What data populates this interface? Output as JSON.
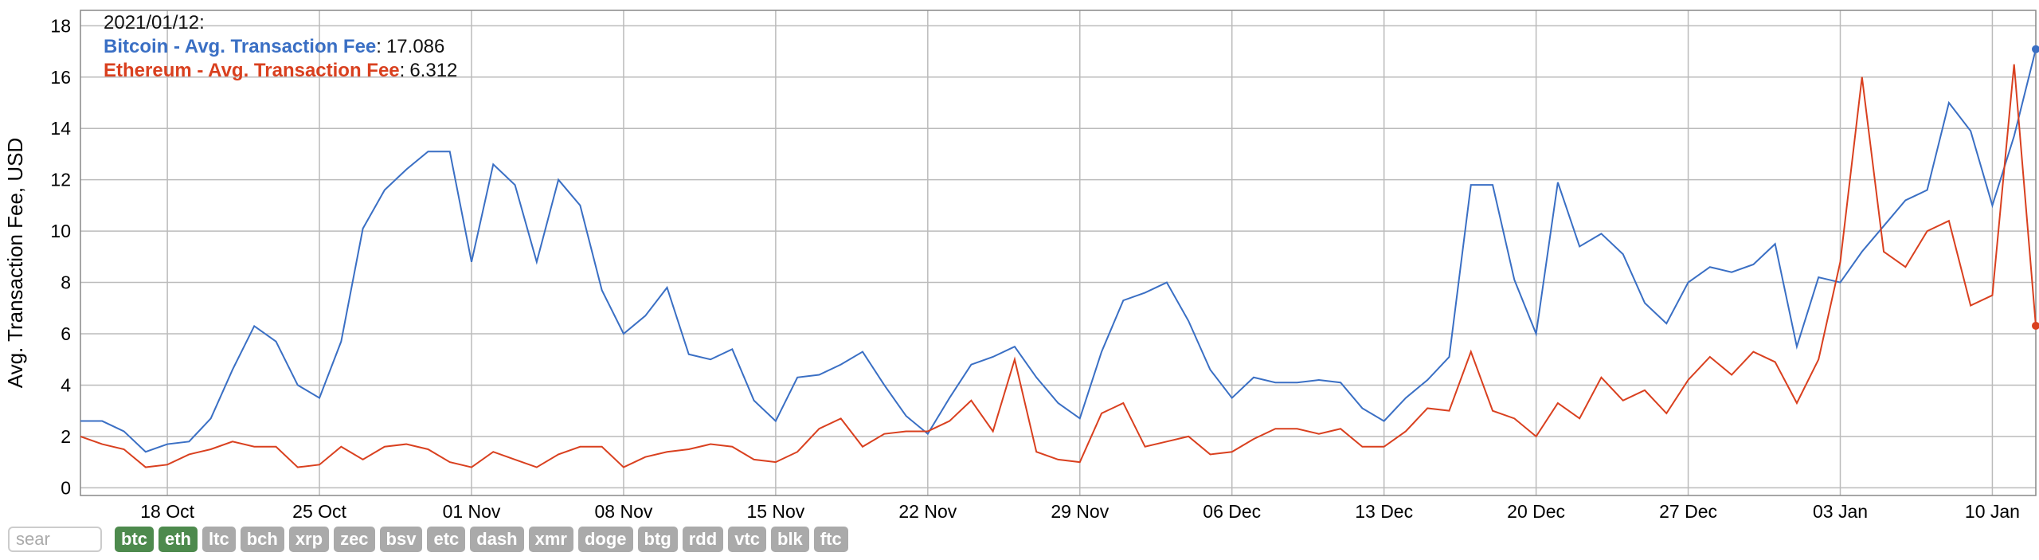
{
  "chart_data": {
    "type": "line",
    "y_label": "Avg. Transaction Fee, USD",
    "categories": [
      null,
      null,
      null,
      null,
      "18 Oct",
      null,
      null,
      null,
      null,
      null,
      null,
      "25 Oct",
      null,
      null,
      null,
      null,
      null,
      null,
      "01 Nov",
      null,
      null,
      null,
      null,
      null,
      null,
      "08 Nov",
      null,
      null,
      null,
      null,
      null,
      null,
      "15 Nov",
      null,
      null,
      null,
      null,
      null,
      null,
      "22 Nov",
      null,
      null,
      null,
      null,
      null,
      null,
      "29 Nov",
      null,
      null,
      null,
      null,
      null,
      null,
      "06 Dec",
      null,
      null,
      null,
      null,
      null,
      null,
      "13 Dec",
      null,
      null,
      null,
      null,
      null,
      null,
      "20 Dec",
      null,
      null,
      null,
      null,
      null,
      null,
      "27 Dec",
      null,
      null,
      null,
      null,
      null,
      null,
      "03 Jan",
      null,
      null,
      null,
      null,
      null,
      null,
      "10 Jan",
      null,
      null
    ],
    "series": [
      {
        "name": "Bitcoin - Avg. Transaction Fee",
        "color": "#3a6fc4",
        "values": [
          2.6,
          2.6,
          2.2,
          1.4,
          1.7,
          1.8,
          2.7,
          4.6,
          6.3,
          5.7,
          4.0,
          3.5,
          5.7,
          10.1,
          11.6,
          12.4,
          13.1,
          13.1,
          8.8,
          12.6,
          11.8,
          8.8,
          12.0,
          11.0,
          7.7,
          6.0,
          6.7,
          7.8,
          5.2,
          5.0,
          5.4,
          3.4,
          2.6,
          4.3,
          4.4,
          4.8,
          5.3,
          4.0,
          2.8,
          2.1,
          3.5,
          4.8,
          5.1,
          5.5,
          4.3,
          3.3,
          2.7,
          5.3,
          7.3,
          7.6,
          8.0,
          6.5,
          4.6,
          3.5,
          4.3,
          4.1,
          4.1,
          4.2,
          4.1,
          3.1,
          2.6,
          3.5,
          4.2,
          5.1,
          11.8,
          11.8,
          8.1,
          6.0,
          11.9,
          9.4,
          9.9,
          9.1,
          7.2,
          6.4,
          8.0,
          8.6,
          8.4,
          8.7,
          9.5,
          5.5,
          8.2,
          8.0,
          9.2,
          10.2,
          11.2,
          11.6,
          15.0,
          13.9,
          11.0,
          13.7,
          17.086
        ]
      },
      {
        "name": "Ethereum - Avg. Transaction Fee",
        "color": "#d9401f",
        "values": [
          2.0,
          1.7,
          1.5,
          0.8,
          0.9,
          1.3,
          1.5,
          1.8,
          1.6,
          1.6,
          0.8,
          0.9,
          1.6,
          1.1,
          1.6,
          1.7,
          1.5,
          1.0,
          0.8,
          1.4,
          1.1,
          0.8,
          1.3,
          1.6,
          1.6,
          0.8,
          1.2,
          1.4,
          1.5,
          1.7,
          1.6,
          1.1,
          1.0,
          1.4,
          2.3,
          2.7,
          1.6,
          2.1,
          2.2,
          2.2,
          2.6,
          3.4,
          2.2,
          5.0,
          1.4,
          1.1,
          1.0,
          2.9,
          3.3,
          1.6,
          1.8,
          2.0,
          1.3,
          1.4,
          1.9,
          2.3,
          2.3,
          2.1,
          2.3,
          1.6,
          1.6,
          2.2,
          3.1,
          3.0,
          5.3,
          3.0,
          2.7,
          2.0,
          3.3,
          2.7,
          4.3,
          3.4,
          3.8,
          2.9,
          4.2,
          5.1,
          4.4,
          5.3,
          4.9,
          3.3,
          5.0,
          8.8,
          16.0,
          9.2,
          8.6,
          10.0,
          10.4,
          7.1,
          7.5,
          16.5,
          6.312
        ]
      }
    ],
    "tooltip_date": "2021/01/12",
    "ylim": [
      -0.3,
      18.6
    ],
    "yticks": [
      0,
      2,
      4,
      6,
      8,
      10,
      12,
      14,
      16,
      18
    ],
    "grid": true
  },
  "controls": {
    "search_placeholder": "sear",
    "buttons": [
      {
        "label": "btc",
        "active": true
      },
      {
        "label": "eth",
        "active": true
      },
      {
        "label": "ltc",
        "active": false
      },
      {
        "label": "bch",
        "active": false
      },
      {
        "label": "xrp",
        "active": false
      },
      {
        "label": "zec",
        "active": false
      },
      {
        "label": "bsv",
        "active": false
      },
      {
        "label": "etc",
        "active": false
      },
      {
        "label": "dash",
        "active": false
      },
      {
        "label": "xmr",
        "active": false
      },
      {
        "label": "doge",
        "active": false
      },
      {
        "label": "btg",
        "active": false
      },
      {
        "label": "rdd",
        "active": false
      },
      {
        "label": "vtc",
        "active": false
      },
      {
        "label": "blk",
        "active": false
      },
      {
        "label": "ftc",
        "active": false
      }
    ]
  }
}
